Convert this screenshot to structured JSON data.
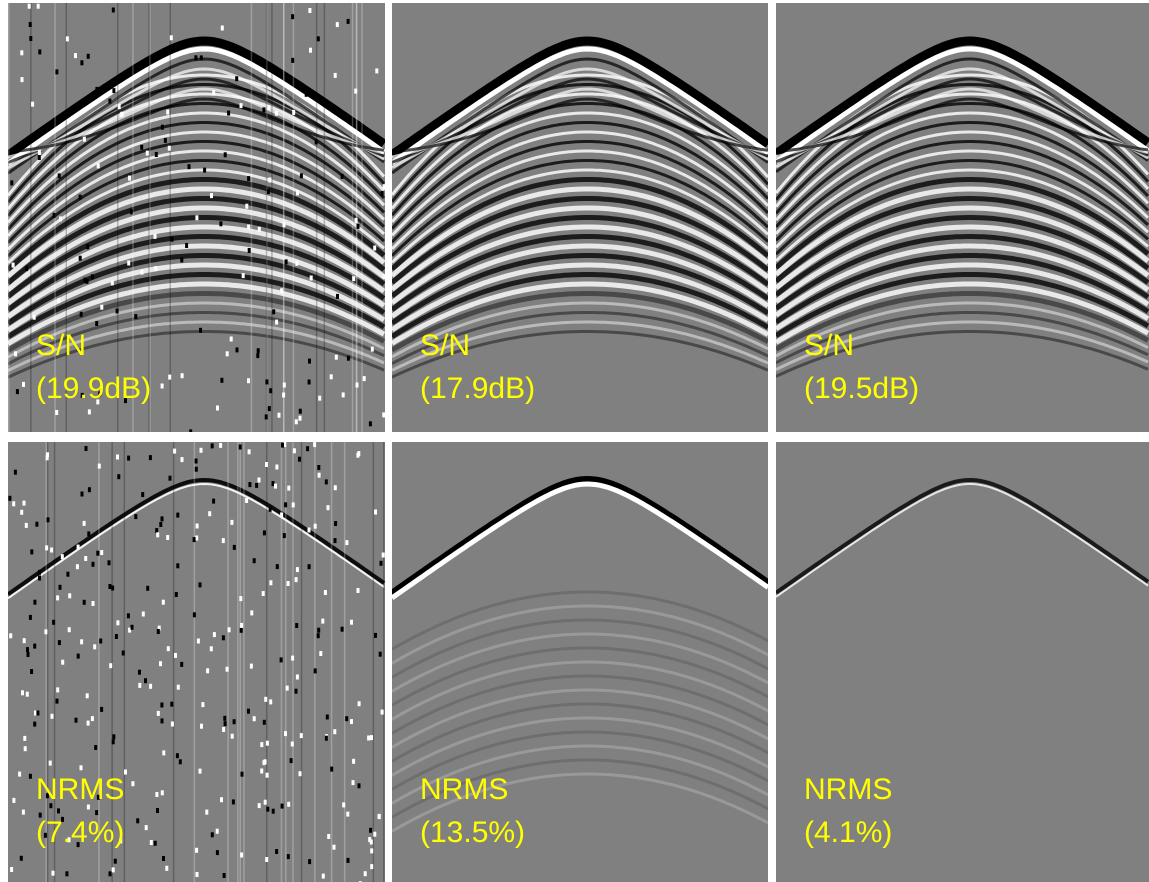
{
  "rows": [
    {
      "panels": [
        {
          "metric": "S/N",
          "value": "(19.9dB)"
        },
        {
          "metric": "S/N",
          "value": "(17.9dB)"
        },
        {
          "metric": "S/N",
          "value": "(19.5dB)"
        }
      ]
    },
    {
      "panels": [
        {
          "metric": "NRMS",
          "value": "(7.4%)"
        },
        {
          "metric": "NRMS",
          "value": "(13.5%)"
        },
        {
          "metric": "NRMS",
          "value": "(4.1%)"
        }
      ]
    }
  ]
}
